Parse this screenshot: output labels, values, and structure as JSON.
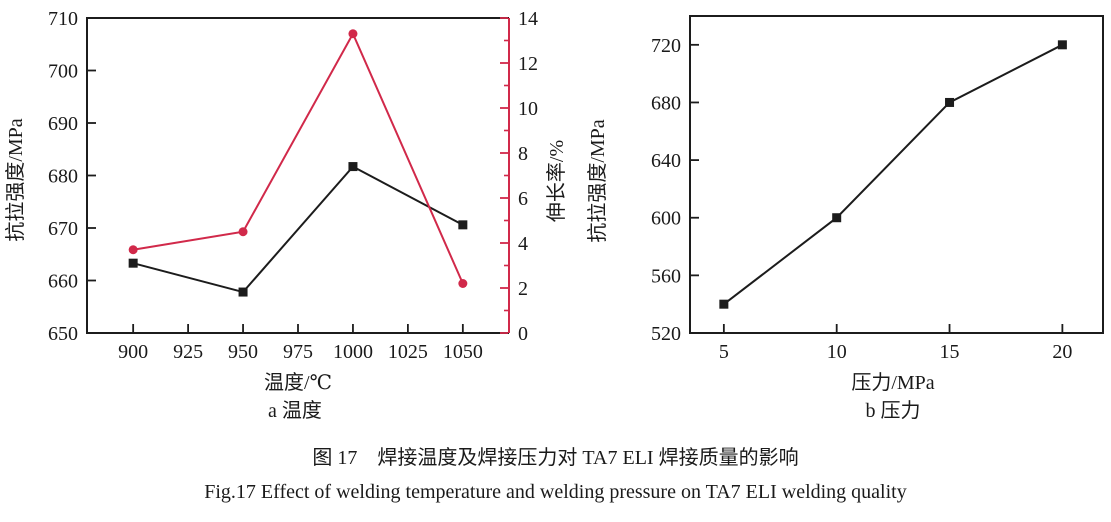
{
  "figure": {
    "caption_zh": "图 17　焊接温度及焊接压力对 TA7 ELI 焊接质量的影响",
    "caption_en": "Fig.17 Effect of welding temperature and welding pressure on TA7 ELI welding quality"
  },
  "colors": {
    "strength_series": "#1c1c1c",
    "elongation_series": "#d1294a",
    "text": "#1a1a1a"
  },
  "chart_data": [
    {
      "type": "line",
      "panel": "a",
      "sub_caption": "a 温度",
      "xlabel": "温度/℃",
      "ylabel_left": "抗拉强度/MPa",
      "ylabel_right": "伸长率/%",
      "x": [
        900,
        950,
        1000,
        1050
      ],
      "xlim": [
        879,
        1071
      ],
      "x_ticks": [
        900,
        925,
        950,
        975,
        1000,
        1025,
        1050
      ],
      "ylim_left": [
        650,
        710
      ],
      "y_ticks_left": [
        650,
        660,
        670,
        680,
        690,
        700,
        710
      ],
      "ylim_right": [
        0,
        14
      ],
      "y_ticks_right": [
        0,
        2,
        4,
        6,
        8,
        10,
        12,
        14
      ],
      "y_ticks_right_minor": [
        1,
        3,
        5,
        7,
        9,
        11,
        13
      ],
      "right_axis_color": "#d1294a",
      "grid": false,
      "legend": "none",
      "series": [
        {
          "name": "抗拉强度",
          "axis": "left",
          "color": "#1c1c1c",
          "marker": "square",
          "values": [
            663.3,
            657.8,
            681.7,
            670.6
          ]
        },
        {
          "name": "伸长率",
          "axis": "right",
          "color": "#d1294a",
          "marker": "circle",
          "values": [
            3.7,
            4.5,
            13.3,
            2.2
          ]
        }
      ]
    },
    {
      "type": "line",
      "panel": "b",
      "sub_caption": "b 压力",
      "xlabel": "压力/MPa",
      "ylabel_left": "抗拉强度/MPa",
      "x": [
        5,
        10,
        15,
        20
      ],
      "xlim": [
        3.5,
        21.8
      ],
      "x_ticks": [
        5,
        10,
        15,
        20
      ],
      "ylim_left": [
        520,
        740
      ],
      "y_ticks_left": [
        520,
        560,
        600,
        640,
        680,
        720
      ],
      "grid": false,
      "legend": "none",
      "series": [
        {
          "name": "抗拉强度",
          "axis": "left",
          "color": "#1c1c1c",
          "marker": "square",
          "values": [
            540,
            600,
            680,
            720
          ]
        }
      ]
    }
  ]
}
